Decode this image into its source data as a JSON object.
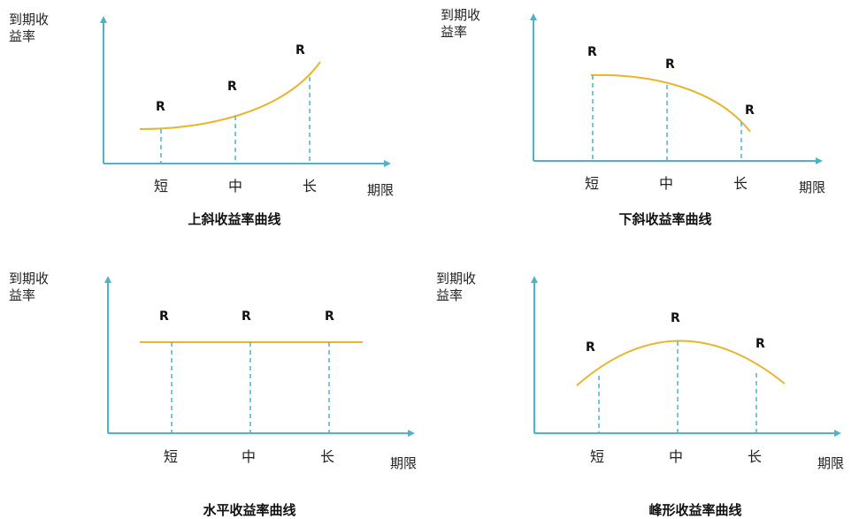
{
  "colors": {
    "axis": "#4db3c9",
    "curve": "#e8b52c",
    "guide": "#4db3c9"
  },
  "y_axis_label": [
    "到期收",
    "益率"
  ],
  "x_axis_label": "期限",
  "ticks": [
    "短",
    "中",
    "长"
  ],
  "marker": "R",
  "panels": [
    {
      "title": "上斜收益率曲线",
      "shape": "upward"
    },
    {
      "title": "下斜收益率曲线",
      "shape": "downward"
    },
    {
      "title": "水平收益率曲线",
      "shape": "flat"
    },
    {
      "title": "峰形收益率曲线",
      "shape": "humped"
    }
  ]
}
